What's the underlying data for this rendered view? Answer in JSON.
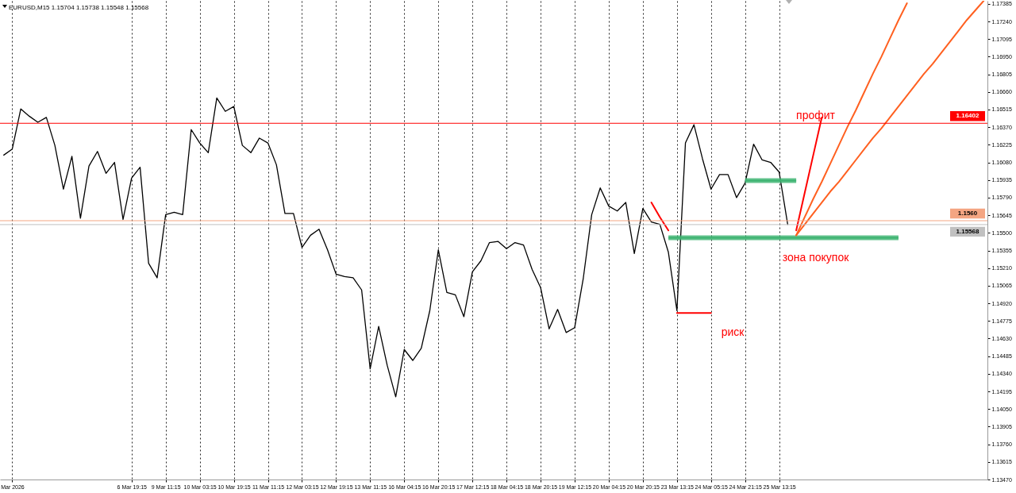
{
  "chart_data": {
    "type": "line",
    "title": "EURUSD,M15 1.15704 1.15738 1.15548 1.15568",
    "categories": [
      null,
      "Mar 2026",
      null,
      null,
      null,
      null,
      null,
      null,
      null,
      null,
      null,
      null,
      null,
      null,
      null,
      "6 Mar 19:15",
      null,
      null,
      null,
      "9 Mar 11:15",
      null,
      null,
      null,
      "10 Mar 03:15",
      null,
      null,
      null,
      "10 Mar 19:15",
      null,
      null,
      null,
      "11 Mar 11:15",
      null,
      null,
      null,
      "12 Mar 03:15",
      null,
      null,
      null,
      "12 Mar 19:15",
      null,
      null,
      null,
      "13 Mar 11:15",
      null,
      null,
      null,
      "16 Mar 04:15",
      null,
      null,
      null,
      "16 Mar 20:15",
      null,
      null,
      null,
      "17 Mar 12:15",
      null,
      null,
      null,
      "18 Mar 04:15",
      null,
      null,
      null,
      "18 Mar 20:15",
      null,
      null,
      null,
      "19 Mar 12:15",
      null,
      null,
      null,
      "20 Mar 04:15",
      null,
      null,
      null,
      "20 Mar 20:15",
      null,
      null,
      null,
      "23 Mar 13:15",
      null,
      null,
      null,
      "24 Mar 05:15",
      null,
      null,
      null,
      "24 Mar 21:15",
      null,
      null,
      null,
      "25 Mar 13:15",
      null,
      null,
      null,
      null,
      null,
      null,
      null,
      null,
      null,
      null,
      null,
      null,
      null,
      null,
      null,
      null,
      null,
      null,
      null,
      null,
      null,
      null,
      null,
      null
    ],
    "series": [
      {
        "color": "#000000",
        "values": [
          1.1614,
          1.1619,
          1.1652,
          1.1646,
          1.1641,
          1.1645,
          1.1622,
          1.1586,
          1.1613,
          1.1562,
          1.1605,
          1.1617,
          1.1599,
          1.1608,
          1.1561,
          1.1595,
          1.1604,
          1.1525,
          1.1513,
          1.1565,
          1.1567,
          1.1565,
          1.1635,
          1.1624,
          1.1616,
          1.1661,
          1.165,
          1.1654,
          1.1622,
          1.1616,
          1.1628,
          1.1624,
          1.1606,
          1.1566,
          1.1566,
          1.1538,
          1.1548,
          1.1553,
          1.1536,
          1.1516,
          1.1514,
          1.1513,
          1.1503,
          1.1438,
          1.1473,
          1.1441,
          1.1415,
          1.1454,
          1.1445,
          1.1455,
          1.1486,
          1.1536,
          1.1501,
          1.1499,
          1.1481,
          1.1518,
          1.1527,
          1.1542,
          1.1543,
          1.1537,
          1.1542,
          1.154,
          1.152,
          1.1505,
          1.1471,
          1.1487,
          1.1468,
          1.1472,
          1.1512,
          1.1565,
          1.1587,
          1.1572,
          1.1568,
          1.1575,
          1.1533,
          1.157,
          1.1559,
          1.1557,
          1.1534,
          1.1486,
          1.1624,
          1.1639,
          1.1611,
          1.1586,
          1.1598,
          1.1598,
          1.1579,
          1.1591,
          1.1623,
          1.161,
          1.1608,
          1.16,
          1.1557,
          null,
          null,
          null,
          null,
          null,
          null,
          null,
          null,
          null,
          null,
          null,
          null,
          null,
          null,
          null,
          null,
          null,
          null,
          null,
          null,
          null,
          null,
          null
        ]
      },
      {
        "type": "line",
        "color": "#3cb371",
        "values": [
          null,
          null,
          null,
          null,
          null,
          null,
          null,
          null,
          null,
          null,
          null,
          null,
          null,
          null,
          null,
          null,
          null,
          null,
          null,
          null,
          null,
          null,
          null,
          null,
          null,
          null,
          null,
          null,
          null,
          null,
          null,
          null,
          null,
          null,
          null,
          null,
          null,
          null,
          null,
          null,
          null,
          null,
          null,
          null,
          null,
          null,
          null,
          null,
          null,
          null,
          null,
          null,
          null,
          null,
          null,
          null,
          null,
          null,
          null,
          null,
          null,
          null,
          null,
          null,
          null,
          null,
          null,
          null,
          null,
          null,
          null,
          null,
          null,
          null,
          null,
          null,
          null,
          null,
          1.1546,
          1.1546,
          1.1546,
          1.1546,
          1.1546,
          1.1546,
          1.1546,
          1.1546,
          1.1546,
          1.1546,
          1.1546,
          1.1546,
          1.1546,
          1.1546,
          1.1546,
          1.1546,
          1.1546,
          1.1546,
          1.1546,
          1.1546,
          1.1546,
          1.1546,
          1.1546,
          1.1546,
          1.1546,
          1.1546,
          1.1546,
          1.1546,
          null,
          null,
          null,
          null,
          null,
          null,
          null,
          null,
          null,
          null
        ],
        "lower": [
          null,
          null,
          null,
          null,
          null,
          null,
          null,
          null,
          null,
          null,
          null,
          null,
          null,
          null,
          null,
          null,
          null,
          null,
          null,
          null,
          null,
          null,
          null,
          null,
          null,
          null,
          null,
          null,
          null,
          null,
          null,
          null,
          null,
          null,
          null,
          null,
          null,
          null,
          null,
          null,
          null,
          null,
          null,
          null,
          null,
          null,
          null,
          null,
          null,
          null,
          null,
          null,
          null,
          null,
          null,
          null,
          null,
          null,
          null,
          null,
          null,
          null,
          null,
          null,
          null,
          null,
          null,
          null,
          null,
          null,
          null,
          null,
          null,
          null,
          null,
          null,
          null,
          null,
          1.1544,
          1.1544,
          1.1544,
          1.1544,
          1.1544,
          1.1544,
          1.1544,
          1.1544,
          1.1544,
          1.1544,
          1.1544,
          1.1544,
          1.1544,
          1.1544,
          1.1544,
          1.1544,
          1.1544,
          1.1544,
          1.1544,
          1.1544,
          1.1544,
          1.1544,
          1.1544,
          1.1544,
          1.1544,
          1.1544,
          1.1544,
          1.1544,
          null,
          null,
          null,
          null,
          null,
          null,
          null,
          null,
          null,
          null
        ],
        "upper": [
          null,
          null,
          null,
          null,
          null,
          null,
          null,
          null,
          null,
          null,
          null,
          null,
          null,
          null,
          null,
          null,
          null,
          null,
          null,
          null,
          null,
          null,
          null,
          null,
          null,
          null,
          null,
          null,
          null,
          null,
          null,
          null,
          null,
          null,
          null,
          null,
          null,
          null,
          null,
          null,
          null,
          null,
          null,
          null,
          null,
          null,
          null,
          null,
          null,
          null,
          null,
          null,
          null,
          null,
          null,
          null,
          null,
          null,
          null,
          null,
          null,
          null,
          null,
          null,
          null,
          null,
          null,
          null,
          null,
          null,
          null,
          null,
          null,
          null,
          null,
          null,
          null,
          null,
          1.1548,
          1.1548,
          1.1548,
          1.1548,
          1.1548,
          1.1548,
          1.1548,
          1.1548,
          1.1548,
          1.1548,
          1.1548,
          1.1548,
          1.1548,
          1.1548,
          1.1548,
          1.1548,
          1.1548,
          1.1548,
          1.1548,
          1.1548,
          1.1548,
          1.1548,
          1.1548,
          1.1548,
          1.1548,
          1.1548,
          1.1548,
          1.1548,
          null,
          null,
          null,
          null,
          null,
          null,
          null,
          null,
          null,
          null
        ]
      },
      {
        "type": "line",
        "color": "#3cb371",
        "values": [
          null,
          null,
          null,
          null,
          null,
          null,
          null,
          null,
          null,
          null,
          null,
          null,
          null,
          null,
          null,
          null,
          null,
          null,
          null,
          null,
          null,
          null,
          null,
          null,
          null,
          null,
          null,
          null,
          null,
          null,
          null,
          null,
          null,
          null,
          null,
          null,
          null,
          null,
          null,
          null,
          null,
          null,
          null,
          null,
          null,
          null,
          null,
          null,
          null,
          null,
          null,
          null,
          null,
          null,
          null,
          null,
          null,
          null,
          null,
          null,
          null,
          null,
          null,
          null,
          null,
          null,
          null,
          null,
          null,
          null,
          null,
          null,
          null,
          null,
          null,
          null,
          null,
          null,
          null,
          null,
          null,
          null,
          null,
          null,
          null,
          null,
          null,
          1.1593,
          1.1593,
          1.1593,
          1.1593,
          1.1593,
          1.1593,
          1.1593,
          null,
          null,
          null,
          null,
          null,
          null,
          null,
          null,
          null,
          null,
          null,
          null,
          null,
          null,
          null,
          null,
          null,
          null,
          null,
          null,
          null,
          null
        ],
        "lower": [
          null,
          null,
          null,
          null,
          null,
          null,
          null,
          null,
          null,
          null,
          null,
          null,
          null,
          null,
          null,
          null,
          null,
          null,
          null,
          null,
          null,
          null,
          null,
          null,
          null,
          null,
          null,
          null,
          null,
          null,
          null,
          null,
          null,
          null,
          null,
          null,
          null,
          null,
          null,
          null,
          null,
          null,
          null,
          null,
          null,
          null,
          null,
          null,
          null,
          null,
          null,
          null,
          null,
          null,
          null,
          null,
          null,
          null,
          null,
          null,
          null,
          null,
          null,
          null,
          null,
          null,
          null,
          null,
          null,
          null,
          null,
          null,
          null,
          null,
          null,
          null,
          null,
          null,
          null,
          null,
          null,
          null,
          null,
          null,
          null,
          null,
          null,
          1.1591,
          1.1591,
          1.1591,
          1.1591,
          1.1591,
          1.1591,
          1.1591,
          null,
          null,
          null,
          null,
          null,
          null,
          null,
          null,
          null,
          null,
          null,
          null,
          null,
          null,
          null,
          null,
          null,
          null,
          null,
          null,
          null,
          null
        ],
        "upper": [
          null,
          null,
          null,
          null,
          null,
          null,
          null,
          null,
          null,
          null,
          null,
          null,
          null,
          null,
          null,
          null,
          null,
          null,
          null,
          null,
          null,
          null,
          null,
          null,
          null,
          null,
          null,
          null,
          null,
          null,
          null,
          null,
          null,
          null,
          null,
          null,
          null,
          null,
          null,
          null,
          null,
          null,
          null,
          null,
          null,
          null,
          null,
          null,
          null,
          null,
          null,
          null,
          null,
          null,
          null,
          null,
          null,
          null,
          null,
          null,
          null,
          null,
          null,
          null,
          null,
          null,
          null,
          null,
          null,
          null,
          null,
          null,
          null,
          null,
          null,
          null,
          null,
          null,
          null,
          null,
          null,
          null,
          null,
          null,
          null,
          null,
          null,
          1.1595,
          1.1595,
          1.1595,
          1.1595,
          1.1595,
          1.1595,
          1.1595,
          null,
          null,
          null,
          null,
          null,
          null,
          null,
          null,
          null,
          null,
          null,
          null,
          null,
          null,
          null,
          null,
          null,
          null,
          null,
          null,
          null,
          null
        ]
      },
      {
        "type": "line",
        "color": "#ff6020",
        "values": [
          null,
          null,
          null,
          null,
          null,
          null,
          null,
          null,
          null,
          null,
          null,
          null,
          null,
          null,
          null,
          null,
          null,
          null,
          null,
          null,
          null,
          null,
          null,
          null,
          null,
          null,
          null,
          null,
          null,
          null,
          null,
          null,
          null,
          null,
          null,
          null,
          null,
          null,
          null,
          null,
          null,
          null,
          null,
          null,
          null,
          null,
          null,
          null,
          null,
          null,
          null,
          null,
          null,
          null,
          null,
          null,
          null,
          null,
          null,
          null,
          null,
          null,
          null,
          null,
          null,
          null,
          null,
          null,
          null,
          null,
          null,
          null,
          null,
          null,
          null,
          null,
          null,
          null,
          null,
          null,
          null,
          null,
          null,
          null,
          null,
          null,
          null,
          null,
          null,
          null,
          null,
          null,
          null,
          1.1548,
          1.1563,
          1.1578,
          1.1592,
          1.1607,
          1.1622,
          1.1637,
          1.1651,
          1.1666,
          1.1681,
          1.1695,
          1.171,
          1.1725,
          1.1739,
          null,
          null,
          null,
          null,
          null,
          null,
          null,
          null,
          null
        ]
      },
      {
        "type": "line",
        "color": "#ff6020",
        "values": [
          null,
          null,
          null,
          null,
          null,
          null,
          null,
          null,
          null,
          null,
          null,
          null,
          null,
          null,
          null,
          null,
          null,
          null,
          null,
          null,
          null,
          null,
          null,
          null,
          null,
          null,
          null,
          null,
          null,
          null,
          null,
          null,
          null,
          null,
          null,
          null,
          null,
          null,
          null,
          null,
          null,
          null,
          null,
          null,
          null,
          null,
          null,
          null,
          null,
          null,
          null,
          null,
          null,
          null,
          null,
          null,
          null,
          null,
          null,
          null,
          null,
          null,
          null,
          null,
          null,
          null,
          null,
          null,
          null,
          null,
          null,
          null,
          null,
          null,
          null,
          null,
          null,
          null,
          null,
          null,
          null,
          null,
          null,
          null,
          null,
          null,
          null,
          null,
          null,
          null,
          null,
          null,
          null,
          1.1548,
          1.1557,
          1.1566,
          1.1575,
          1.1584,
          1.1592,
          1.1601,
          1.161,
          1.1619,
          1.1628,
          1.1636,
          1.1645,
          1.1654,
          1.1663,
          1.1672,
          1.1681,
          1.1689,
          1.1698,
          1.1707,
          1.1716,
          1.1725,
          1.1733,
          1.1741
        ]
      },
      {
        "type": "line",
        "color": "#ff0000",
        "values": [
          null,
          null,
          null,
          null,
          null,
          null,
          null,
          null,
          null,
          null,
          null,
          null,
          null,
          null,
          null,
          null,
          null,
          null,
          null,
          null,
          null,
          null,
          null,
          null,
          null,
          null,
          null,
          null,
          null,
          null,
          null,
          null,
          null,
          null,
          null,
          null,
          null,
          null,
          null,
          null,
          null,
          null,
          null,
          null,
          null,
          null,
          null,
          null,
          null,
          null,
          null,
          null,
          null,
          null,
          null,
          null,
          null,
          null,
          null,
          null,
          null,
          null,
          null,
          null,
          null,
          null,
          null,
          null,
          null,
          null,
          null,
          null,
          null,
          null,
          null,
          null,
          null,
          null,
          null,
          null,
          null,
          null,
          null,
          null,
          null,
          null,
          null,
          null,
          null,
          null,
          null,
          null,
          null,
          1.1552,
          1.1583,
          1.1614,
          1.1645,
          null,
          null,
          null,
          null,
          null,
          null,
          null,
          null,
          null,
          null,
          null,
          null,
          null,
          null,
          null,
          null,
          null,
          null,
          null
        ]
      },
      {
        "type": "line",
        "color": "#ff0000",
        "values": [
          null,
          null,
          null,
          null,
          null,
          null,
          null,
          null,
          null,
          null,
          null,
          null,
          null,
          null,
          null,
          null,
          null,
          null,
          null,
          null,
          null,
          null,
          null,
          null,
          null,
          null,
          null,
          null,
          null,
          null,
          null,
          null,
          null,
          null,
          null,
          null,
          null,
          null,
          null,
          null,
          null,
          null,
          null,
          null,
          null,
          null,
          null,
          null,
          null,
          null,
          null,
          null,
          null,
          null,
          null,
          null,
          null,
          null,
          null,
          null,
          null,
          null,
          null,
          null,
          null,
          null,
          null,
          null,
          null,
          null,
          null,
          null,
          null,
          null,
          null,
          null,
          null,
          null,
          null,
          1.1484,
          1.1484,
          1.1484,
          1.1484,
          1.1484,
          null,
          null,
          null,
          null,
          null,
          null,
          null,
          null,
          null,
          null,
          null,
          null,
          null,
          null,
          null,
          null,
          null,
          null,
          null,
          null,
          null,
          null,
          null,
          null,
          null,
          null,
          null,
          null,
          null,
          null,
          null,
          null
        ]
      },
      {
        "type": "line",
        "color": "#ff0000",
        "values": [
          null,
          null,
          null,
          null,
          null,
          null,
          null,
          null,
          null,
          null,
          null,
          null,
          null,
          null,
          null,
          null,
          null,
          null,
          null,
          null,
          null,
          null,
          null,
          null,
          null,
          null,
          null,
          null,
          null,
          null,
          null,
          null,
          null,
          null,
          null,
          null,
          null,
          null,
          null,
          null,
          null,
          null,
          null,
          null,
          null,
          null,
          null,
          null,
          null,
          null,
          null,
          null,
          null,
          null,
          null,
          null,
          null,
          null,
          null,
          null,
          null,
          null,
          null,
          null,
          null,
          null,
          null,
          null,
          null,
          null,
          null,
          null,
          null,
          null,
          null,
          null,
          1.1575,
          1.1563,
          1.1552,
          null,
          null,
          null,
          null,
          null,
          null,
          null,
          null,
          null,
          null,
          null,
          null,
          null,
          null,
          null,
          null,
          null,
          null,
          null,
          null,
          null,
          null,
          null,
          null,
          null,
          null,
          null,
          null,
          null,
          null,
          null,
          null,
          null,
          null,
          null,
          null,
          null
        ]
      }
    ],
    "ylim": [
      1.1347,
      1.1741
    ],
    "yticks": [
      {
        "value": 1.1347,
        "label": "1.13470"
      },
      1.13615,
      {
        "value": 1.1376,
        "label": "1.13760"
      },
      1.13905,
      {
        "value": 1.1405,
        "label": "1.14050"
      },
      1.14195,
      {
        "value": 1.1434,
        "label": "1.14340"
      },
      1.14485,
      {
        "value": 1.1463,
        "label": "1.14630"
      },
      1.14775,
      {
        "value": 1.1492,
        "label": "1.14920"
      },
      1.15065,
      {
        "value": 1.1521,
        "label": "1.15210"
      },
      1.15355,
      {
        "value": 1.155,
        "label": "1.15500"
      },
      1.15645,
      {
        "value": 1.1579,
        "label": "1.15790"
      },
      1.15935,
      {
        "value": 1.1608,
        "label": "1.16080"
      },
      1.16225,
      {
        "value": 1.1637,
        "label": "1.16370"
      },
      1.16515,
      {
        "value": 1.1666,
        "label": "1.16660"
      },
      1.16805,
      {
        "value": 1.1695,
        "label": "1.16950"
      },
      1.17095,
      {
        "value": 1.1724,
        "label": "1.17240"
      },
      1.17385
    ],
    "grid": "x",
    "ref_lines": [
      {
        "axis": "y",
        "value": 1.16402,
        "label": "1.16402",
        "color": "#ff0000"
      },
      {
        "axis": "y",
        "value": 1.156,
        "label": "1.1560",
        "color": "#f4a582"
      },
      {
        "axis": "y",
        "value": 1.15568,
        "label": "1.15568",
        "color": "#c0c0c0"
      }
    ],
    "annotations": [
      "профит",
      "зона покупок",
      "риск"
    ]
  }
}
